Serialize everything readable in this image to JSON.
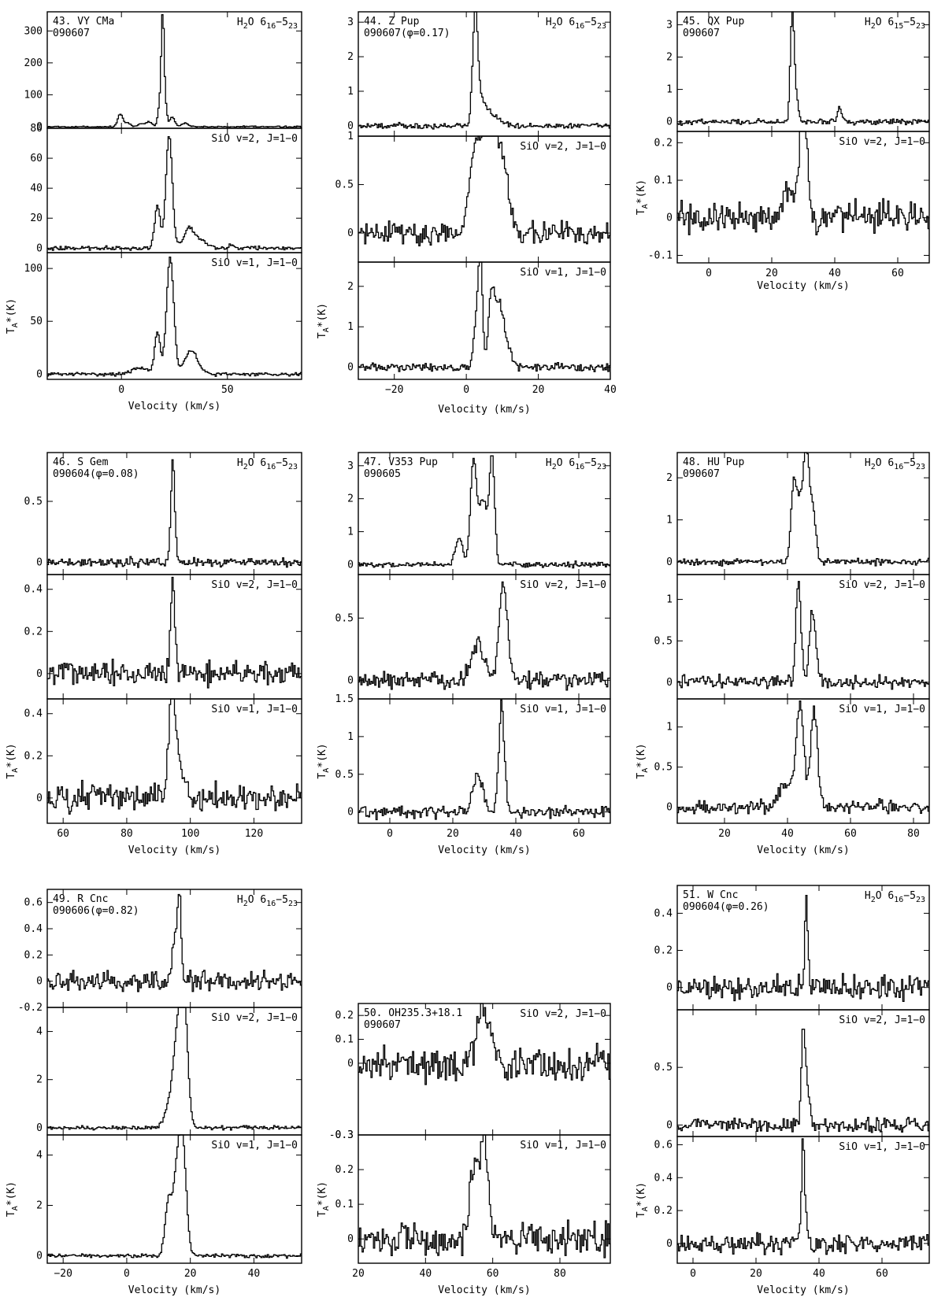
{
  "figure": {
    "x_axis_label": "Velocity (km/s)",
    "y_axis_label": "T",
    "y_axis_label_sub": "A",
    "y_axis_label_suffix": "*(K)",
    "tick_label_note": "300 and 80 are the visible tops of the 43 H2O and SiO v=2 y-axes"
  },
  "chart_data": [
    {
      "type": "line",
      "number": "43.",
      "name": "VY CMa",
      "date": "090607",
      "xlim": [
        -35,
        85
      ],
      "x_ticks": [
        0,
        50
      ],
      "panels": [
        {
          "line_base": "H",
          "line_sub": "2",
          "line_rest": "O 6",
          "sub1": "16",
          "dash": "−",
          "rest2": "5",
          "sub2": "23",
          "ylim": [
            -5,
            360
          ],
          "y_ticks": [
            0,
            100,
            200,
            300
          ],
          "noise": 1.5,
          "features": [
            [
              -0.5,
              40,
              1.2
            ],
            [
              3,
              12,
              1.2
            ],
            [
              9,
              8,
              1.5
            ],
            [
              13,
              15,
              1.5
            ],
            [
              18,
              60,
              0.9
            ],
            [
              19.5,
              340,
              0.7
            ],
            [
              21,
              45,
              0.7
            ],
            [
              24,
              30,
              1.2
            ],
            [
              30,
              10,
              1.5
            ]
          ]
        },
        {
          "line_base": "SiO v=2, J=1−0",
          "ylim": [
            -3,
            80
          ],
          "y_ticks": [
            0,
            20,
            40,
            60,
            80
          ],
          "noise": 0.8,
          "features": [
            [
              17,
              28,
              1.3
            ],
            [
              22.5,
              75,
              1.5
            ],
            [
              32,
              14,
              2.5
            ],
            [
              38,
              5,
              2.5
            ],
            [
              52,
              1.5,
              1.5
            ]
          ]
        },
        {
          "line_base": "SiO v=1, J=1−0",
          "ylim": [
            -5,
            115
          ],
          "y_ticks": [
            0,
            50,
            100
          ],
          "noise": 1.0,
          "features": [
            [
              9,
              6,
              3.5
            ],
            [
              17,
              40,
              1.3
            ],
            [
              23,
              110,
              1.7
            ],
            [
              33,
              22,
              3
            ]
          ]
        }
      ]
    },
    {
      "type": "line",
      "number": "44.",
      "name": "Z Pup",
      "date": "090607(φ=0.17)",
      "xlim": [
        -30,
        40
      ],
      "x_ticks": [
        -20,
        0,
        20,
        40
      ],
      "panels": [
        {
          "line_base": "H",
          "line_sub": "2",
          "line_rest": "O 6",
          "sub1": "16",
          "dash": "−",
          "rest2": "5",
          "sub2": "23",
          "ylim": [
            -0.3,
            3.3
          ],
          "y_ticks": [
            0,
            1,
            2,
            3
          ],
          "noise": 0.05,
          "features": [
            [
              2.5,
              3.0,
              0.7
            ],
            [
              4,
              0.6,
              1.5
            ],
            [
              7,
              0.3,
              2.5
            ]
          ]
        },
        {
          "line_base": "SiO v=2, J=1−0",
          "ylim": [
            -0.3,
            1.0
          ],
          "y_ticks": [
            0,
            0.5,
            1
          ],
          "noise": 0.07,
          "features": [
            [
              2,
              0.5,
              1.5
            ],
            [
              5,
              0.85,
              2.2
            ],
            [
              8,
              0.75,
              1.8
            ],
            [
              11,
              0.4,
              1.5
            ]
          ]
        },
        {
          "line_base": "SiO v=1, J=1−0",
          "ylim": [
            -0.3,
            2.6
          ],
          "y_ticks": [
            0,
            1,
            2
          ],
          "noise": 0.06,
          "features": [
            [
              3,
              1.4,
              0.8
            ],
            [
              4,
              2.4,
              0.5
            ],
            [
              7,
              1.6,
              0.9
            ],
            [
              9,
              1.3,
              1.2
            ],
            [
              11,
              0.5,
              1.5
            ]
          ]
        }
      ]
    },
    {
      "type": "line",
      "number": "45.",
      "name": "QX Pup",
      "date": "090607",
      "xlim": [
        -10,
        70
      ],
      "x_ticks": [
        0,
        20,
        40,
        60
      ],
      "panels": [
        {
          "line_base": "H",
          "line_sub": "2",
          "line_rest": "O 6",
          "sub1": "15",
          "dash": "−",
          "rest2": "5",
          "sub2": "23",
          "ylim": [
            -0.3,
            3.4
          ],
          "y_ticks": [
            0,
            1,
            2,
            3
          ],
          "noise": 0.05,
          "features": [
            [
              26.5,
              3.1,
              0.6
            ],
            [
              27.5,
              0.8,
              0.8
            ],
            [
              41.5,
              0.4,
              0.6
            ]
          ]
        },
        {
          "line_base": "SiO v=2, J=1−0",
          "ylim": [
            -0.12,
            0.23
          ],
          "y_ticks": [
            -0.1,
            0,
            0.1,
            0.2
          ],
          "noise": 0.025,
          "features": [
            [
              25,
              0.1,
              1.2
            ],
            [
              29.5,
              0.2,
              1.2
            ],
            [
              31,
              0.12,
              1.0
            ]
          ]
        }
      ]
    },
    {
      "type": "line",
      "number": "46.",
      "name": "S Gem",
      "date": "090604(φ=0.08)",
      "xlim": [
        55,
        135
      ],
      "x_ticks": [
        60,
        80,
        100,
        120
      ],
      "panels": [
        {
          "line_base": "H",
          "line_sub": "2",
          "line_rest": "O 6",
          "sub1": "16",
          "dash": "−",
          "rest2": "5",
          "sub2": "23",
          "ylim": [
            -0.1,
            0.9
          ],
          "y_ticks": [
            0,
            0.5
          ],
          "noise": 0.022,
          "features": [
            [
              94.5,
              0.85,
              0.6
            ]
          ]
        },
        {
          "line_base": "SiO v=2, J=1−0",
          "ylim": [
            -0.12,
            0.47
          ],
          "y_ticks": [
            0,
            0.2,
            0.4
          ],
          "noise": 0.035,
          "features": [
            [
              94.5,
              0.42,
              0.7
            ]
          ]
        },
        {
          "line_base": "SiO v=1, J=1−0",
          "ylim": [
            -0.12,
            0.47
          ],
          "y_ticks": [
            0,
            0.2,
            0.4
          ],
          "noise": 0.04,
          "features": [
            [
              94,
              0.28,
              1.0
            ],
            [
              95,
              0.3,
              1.2
            ],
            [
              98,
              0.08,
              1.5
            ]
          ]
        }
      ]
    },
    {
      "type": "line",
      "number": "47.",
      "name": "V353 Pup",
      "date": "090605",
      "xlim": [
        -10,
        70
      ],
      "x_ticks": [
        0,
        20,
        40,
        60
      ],
      "panels": [
        {
          "line_base": "H",
          "line_sub": "2",
          "line_rest": "O 6",
          "sub1": "16",
          "dash": "−",
          "rest2": "5",
          "sub2": "23",
          "ylim": [
            -0.3,
            3.4
          ],
          "y_ticks": [
            0,
            1,
            2,
            3
          ],
          "noise": 0.05,
          "features": [
            [
              22,
              0.8,
              1.2
            ],
            [
              26.5,
              3.0,
              0.9
            ],
            [
              29.5,
              2.0,
              1.5
            ],
            [
              32.5,
              3.1,
              0.8
            ]
          ]
        },
        {
          "line_base": "SiO v=2, J=1−0",
          "ylim": [
            -0.15,
            0.85
          ],
          "y_ticks": [
            0,
            0.5
          ],
          "noise": 0.045,
          "features": [
            [
              28,
              0.3,
              2
            ],
            [
              36,
              0.8,
              1.3
            ]
          ]
        },
        {
          "line_base": "SiO v=1, J=1−0",
          "ylim": [
            -0.15,
            1.5
          ],
          "y_ticks": [
            0,
            0.5,
            1,
            1.5
          ],
          "noise": 0.05,
          "features": [
            [
              28,
              0.5,
              1.5
            ],
            [
              35.5,
              1.4,
              0.9
            ]
          ]
        }
      ]
    },
    {
      "type": "line",
      "number": "48.",
      "name": "HU Pup",
      "date": "090607",
      "xlim": [
        5,
        85
      ],
      "x_ticks": [
        20,
        40,
        60,
        80
      ],
      "panels": [
        {
          "line_base": "H",
          "line_sub": "2",
          "line_rest": "O 6",
          "sub1": "16",
          "dash": "−",
          "rest2": "5",
          "sub2": "23",
          "ylim": [
            -0.3,
            2.6
          ],
          "y_ticks": [
            0,
            1,
            2
          ],
          "noise": 0.05,
          "features": [
            [
              42,
              1.8,
              0.9
            ],
            [
              44,
              1.3,
              1.0
            ],
            [
              46,
              2.4,
              0.9
            ],
            [
              48,
              1.2,
              1.0
            ]
          ]
        },
        {
          "line_base": "SiO v=2, J=1−0",
          "ylim": [
            -0.2,
            1.3
          ],
          "y_ticks": [
            0,
            0.5,
            1
          ],
          "noise": 0.05,
          "features": [
            [
              43.5,
              1.2,
              0.8
            ],
            [
              48,
              0.85,
              1.0
            ]
          ]
        },
        {
          "line_base": "SiO v=1, J=1−0",
          "ylim": [
            -0.2,
            1.35
          ],
          "y_ticks": [
            0,
            0.5,
            1
          ],
          "noise": 0.05,
          "features": [
            [
              40,
              0.3,
              2.5
            ],
            [
              44,
              1.2,
              1.2
            ],
            [
              48.5,
              1.2,
              1.1
            ]
          ]
        }
      ]
    },
    {
      "type": "line",
      "number": "49.",
      "name": "R Cnc",
      "date": "090606(φ=0.82)",
      "xlim": [
        -25,
        55
      ],
      "x_ticks": [
        -20,
        0,
        20,
        40
      ],
      "panels": [
        {
          "line_base": "H",
          "line_sub": "2",
          "line_rest": "O 6",
          "sub1": "16",
          "dash": "−",
          "rest2": "5",
          "sub2": "23",
          "ylim": [
            -0.2,
            0.7
          ],
          "y_ticks": [
            -0.2,
            0,
            0.2,
            0.4,
            0.6
          ],
          "noise": 0.045,
          "features": [
            [
              15,
              0.35,
              0.7
            ],
            [
              16.5,
              0.65,
              0.6
            ]
          ]
        },
        {
          "line_base": "SiO v=2, J=1−0",
          "ylim": [
            -0.3,
            5
          ],
          "y_ticks": [
            0,
            2,
            4
          ],
          "noise": 0.05,
          "features": [
            [
              13,
              0.6,
              1.5
            ],
            [
              16,
              3.5,
              1.5
            ],
            [
              18,
              4.6,
              1.2
            ]
          ]
        },
        {
          "line_base": "SiO v=1, J=1−0",
          "ylim": [
            -0.3,
            4.8
          ],
          "y_ticks": [
            0,
            2,
            4
          ],
          "noise": 0.05,
          "features": [
            [
              13,
              2.0,
              1.0
            ],
            [
              15.5,
              2.5,
              1.2
            ],
            [
              17.5,
              4.5,
              1.2
            ]
          ]
        }
      ]
    },
    {
      "type": "line",
      "number": "50.",
      "name": "OH235.3+18.1",
      "date": "090607",
      "xlim": [
        20,
        95
      ],
      "x_ticks": [
        20,
        40,
        60,
        80
      ],
      "panels": [
        {
          "line_base": "SiO v=2, J=1−0",
          "ylim": [
            -0.3,
            0.25
          ],
          "y_ticks": [
            -0.3,
            0,
            0.1,
            0.2
          ],
          "noise": 0.045,
          "features": [
            [
              55.5,
              0.16,
              0.9
            ],
            [
              57.5,
              0.22,
              0.8
            ],
            [
              59.5,
              0.12,
              0.8
            ]
          ]
        },
        {
          "line_base": "SiO v=1, J=1−0",
          "ylim": [
            -0.07,
            0.3
          ],
          "y_ticks": [
            0,
            0.1,
            0.2,
            0.3
          ],
          "noise": 0.03,
          "features": [
            [
              54.5,
              0.2,
              1.2
            ],
            [
              57.5,
              0.27,
              1.3
            ]
          ]
        }
      ]
    },
    {
      "type": "line",
      "number": "51.",
      "name": "W Cnc",
      "date": "090604(φ=0.26)",
      "xlim": [
        -5,
        75
      ],
      "x_ticks": [
        0,
        20,
        40,
        60
      ],
      "panels": [
        {
          "line_base": "H",
          "line_sub": "2",
          "line_rest": "O 6",
          "sub1": "16",
          "dash": "−",
          "rest2": "5",
          "sub2": "23",
          "ylim": [
            -0.12,
            0.55
          ],
          "y_ticks": [
            0,
            0.2,
            0.4
          ],
          "noise": 0.04,
          "features": [
            [
              36,
              0.5,
              0.5
            ]
          ]
        },
        {
          "line_base": "SiO v=2, J=1−0",
          "ylim": [
            -0.1,
            1.0
          ],
          "y_ticks": [
            0,
            0.5
          ],
          "noise": 0.04,
          "features": [
            [
              35,
              0.85,
              0.6
            ],
            [
              36.5,
              0.3,
              0.8
            ]
          ]
        },
        {
          "line_base": "SiO v=1, J=1−0",
          "ylim": [
            -0.12,
            0.65
          ],
          "y_ticks": [
            0,
            0.2,
            0.4,
            0.6
          ],
          "noise": 0.04,
          "features": [
            [
              35,
              0.6,
              0.6
            ]
          ]
        }
      ]
    }
  ]
}
